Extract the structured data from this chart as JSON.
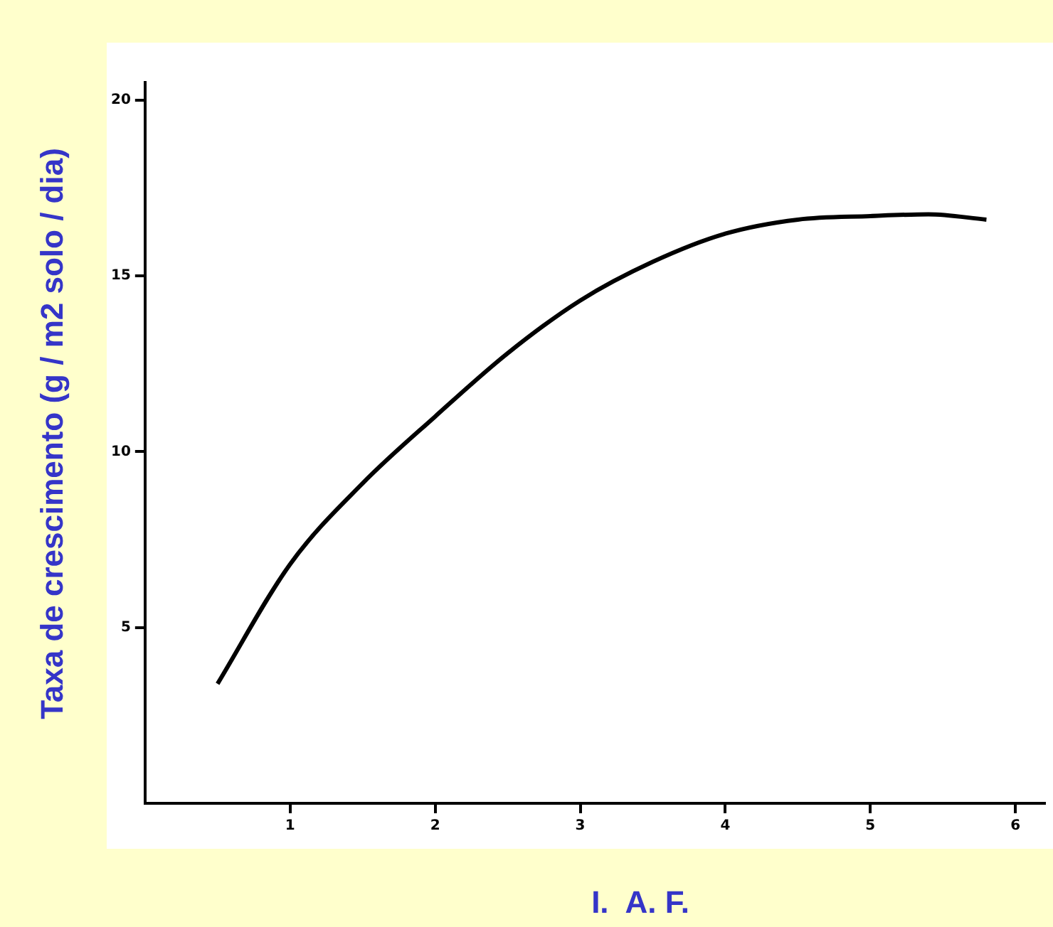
{
  "chart_data": {
    "type": "line",
    "xlabel": "I.  A. F.",
    "ylabel": "Taxa de crescimento (g / m2 solo / dia)",
    "x": [
      0.5,
      1,
      1.5,
      2,
      2.5,
      3,
      3.5,
      4,
      4.5,
      5,
      5.4,
      5.8
    ],
    "series": [
      {
        "color": "#000000",
        "values": [
          3.4,
          6.8,
          9.1,
          11.0,
          12.8,
          14.3,
          15.4,
          16.2,
          16.6,
          16.7,
          16.75,
          16.6
        ]
      }
    ],
    "xlim": [
      0,
      6.2
    ],
    "xticks": [
      1,
      2,
      3,
      4,
      5,
      6
    ],
    "ylim": [
      0,
      20.5
    ],
    "yticks": [
      5,
      10,
      15,
      20
    ],
    "grid": false,
    "legend": false,
    "marker": "none",
    "line_style": "solid"
  }
}
